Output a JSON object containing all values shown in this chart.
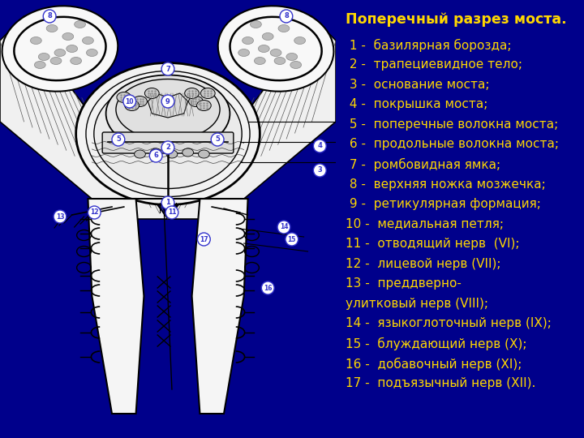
{
  "bg_color": "#00008B",
  "left_panel_bg": "#FFFFFF",
  "title": "Поперечный разрез моста.",
  "title_color": "#FFD700",
  "title_fontsize": 12.5,
  "text_color": "#FFD700",
  "text_fontsize": 11.0,
  "legend_items": [
    " 1 -  базилярная борозда;",
    " 2 -  трапециевидное тело;",
    " 3 -  основание моста;",
    " 4 -  покрышка моста;",
    " 5 -  поперечные волокна моста;",
    " 6 -  продольные волокна моста;",
    " 7 -  ромбовидная ямка;",
    " 8 -  верхняя ножка мозжечка;",
    " 9 -  ретикулярная формация;",
    "10 -  медиальная петля;",
    "11 -  отводящий нерв  (VI);",
    "12 -  лицевой нерв (VII);",
    "13 -  преддверно-",
    "улитковый нерв (VIII);",
    "14 -  языкоглоточный нерв (IX);",
    "15 -  блуждающий нерв (X);",
    "16 -  добавочный нерв (XI);",
    "17 -  подъязычный нерв (XII)."
  ]
}
